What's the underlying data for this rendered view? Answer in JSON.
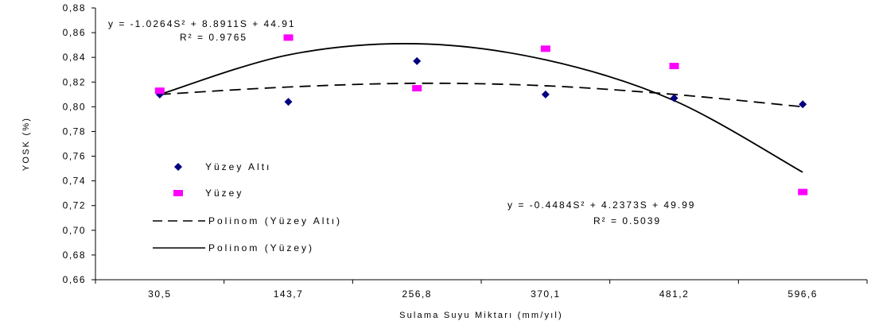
{
  "chart_data": {
    "type": "scatter",
    "title": "",
    "xlabel": "Sulama Suyu Miktarı (mm/yıl)",
    "ylabel": "YOSK (%)",
    "categories": [
      "30,5",
      "143,7",
      "256,8",
      "370,1",
      "481,2",
      "596,6"
    ],
    "y_ticks": [
      "0,66",
      "0,68",
      "0,70",
      "0,72",
      "0,74",
      "0,76",
      "0,78",
      "0,80",
      "0,82",
      "0,84",
      "0,86",
      "0,88"
    ],
    "ylim": [
      0.66,
      0.88
    ],
    "grid": false,
    "legend_position": "left-inside",
    "series": [
      {
        "name": "Yüzey Altı",
        "marker": "diamond",
        "color": "#000080",
        "values": [
          0.81,
          0.804,
          0.837,
          0.81,
          0.807,
          0.802
        ]
      },
      {
        "name": "Yüzey",
        "marker": "square",
        "color": "#ff00ff",
        "values": [
          0.813,
          0.856,
          0.815,
          0.847,
          0.833,
          0.731
        ]
      }
    ],
    "trendlines": [
      {
        "name": "Polinom (Yüzey Altı)",
        "style": "dashed",
        "color": "#000000",
        "values": [
          0.81,
          0.816,
          0.819,
          0.817,
          0.81,
          0.8
        ]
      },
      {
        "name": "Polinom (Yüzey)",
        "style": "solid",
        "color": "#000000",
        "values": [
          0.81,
          0.842,
          0.851,
          0.838,
          0.805,
          0.747
        ]
      }
    ],
    "equations": [
      {
        "equation": "y = -1.0264S² + 8.8911S + 44.91",
        "r2": "R² = 0.9765"
      },
      {
        "equation": "y = -0.4484S² + 4.2373S + 49.99",
        "r2": "R² = 0.5039"
      }
    ]
  }
}
